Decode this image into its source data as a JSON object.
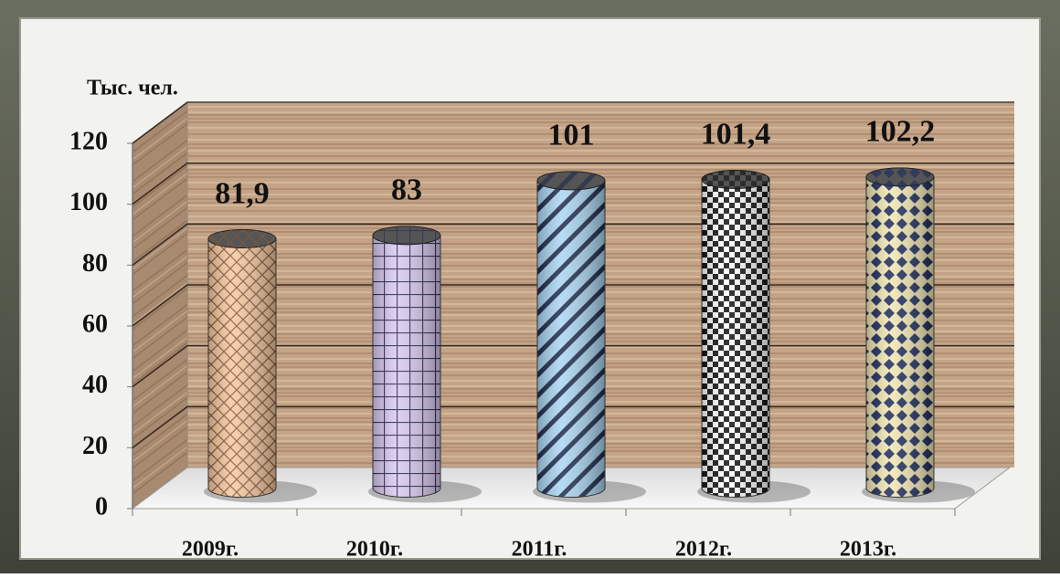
{
  "chart_data": {
    "type": "bar",
    "y_axis_label": "Тыс. чел.",
    "categories": [
      "2009г.",
      "2010г.",
      "2011г.",
      "2012г.",
      "2013г."
    ],
    "values": [
      81.9,
      83,
      101,
      101.4,
      102.2
    ],
    "value_labels": [
      "81,9",
      "83",
      "101",
      "101,4",
      "102,2"
    ],
    "colors": [
      "#f6c8a0",
      "#d9c9f0",
      "#a9d5f2",
      "#ffffff",
      "#f1e6b2"
    ],
    "ylim": [
      0,
      120
    ],
    "yticks": [
      0,
      20,
      40,
      60,
      80,
      100,
      120
    ],
    "grid": true
  }
}
